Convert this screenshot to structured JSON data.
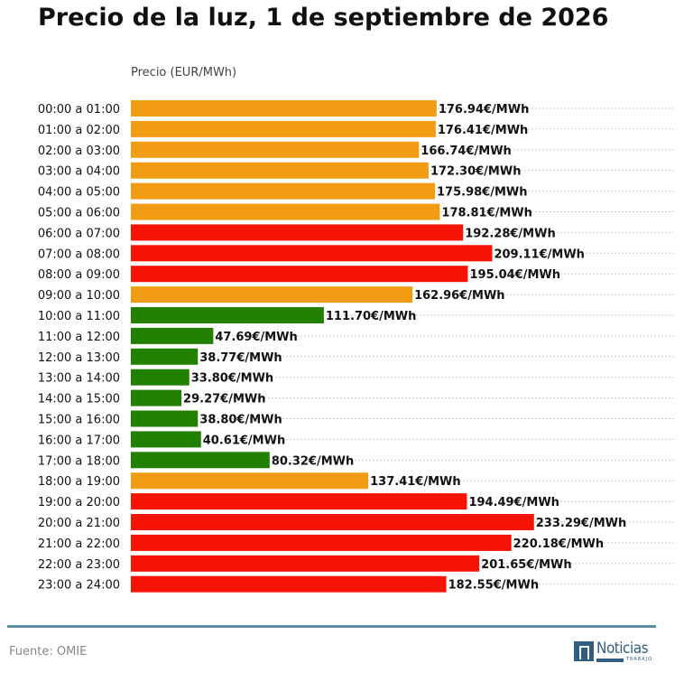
{
  "header": {
    "title": "Precio de la luz, 1 de septiembre de 2026"
  },
  "footer": {
    "source": "Fuente: OMIE",
    "logo_text": "Noticias",
    "logo_subtext": "TRABAJO"
  },
  "chart_data": {
    "type": "bar",
    "orientation": "horizontal",
    "title": "Precio de la luz, 1 de septiembre de 2026",
    "ylabel": "Precio (EUR/MWh)",
    "xlim": [
      0,
      253
    ],
    "grid": "dotted horizontal guides",
    "categories": [
      "00:00 a 01:00",
      "01:00 a 02:00",
      "02:00 a 03:00",
      "03:00 a 04:00",
      "04:00 a 05:00",
      "05:00 a 06:00",
      "06:00 a 07:00",
      "07:00 a 08:00",
      "08:00 a 09:00",
      "09:00 a 10:00",
      "10:00 a 11:00",
      "11:00 a 12:00",
      "12:00 a 13:00",
      "13:00 a 14:00",
      "14:00 a 15:00",
      "15:00 a 16:00",
      "16:00 a 17:00",
      "17:00 a 18:00",
      "18:00 a 19:00",
      "19:00 a 20:00",
      "20:00 a 21:00",
      "21:00 a 22:00",
      "22:00 a 23:00",
      "23:00 a 24:00"
    ],
    "values": [
      176.94,
      176.41,
      166.74,
      172.3,
      175.98,
      178.81,
      192.28,
      209.11,
      195.04,
      162.96,
      111.7,
      47.69,
      38.77,
      33.8,
      29.27,
      38.8,
      40.61,
      80.32,
      137.41,
      194.49,
      233.29,
      220.18,
      201.65,
      182.55
    ],
    "labels": [
      "176.94€/MWh",
      "176.41€/MWh",
      "166.74€/MWh",
      "172.30€/MWh",
      "175.98€/MWh",
      "178.81€/MWh",
      "192.28€/MWh",
      "209.11€/MWh",
      "195.04€/MWh",
      "162.96€/MWh",
      "111.70€/MWh",
      "47.69€/MWh",
      "38.77€/MWh",
      "33.80€/MWh",
      "29.27€/MWh",
      "38.80€/MWh",
      "40.61€/MWh",
      "80.32€/MWh",
      "137.41€/MWh",
      "194.49€/MWh",
      "233.29€/MWh",
      "220.18€/MWh",
      "201.65€/MWh",
      "182.55€/MWh"
    ],
    "bar_colors": [
      "#f29c14",
      "#f29c14",
      "#f29c14",
      "#f29c14",
      "#f29c14",
      "#f29c14",
      "#f51405",
      "#f51405",
      "#f51405",
      "#f29c14",
      "#228000",
      "#228000",
      "#228000",
      "#228000",
      "#228000",
      "#228000",
      "#228000",
      "#228000",
      "#f29c14",
      "#f51405",
      "#f51405",
      "#f51405",
      "#f51405",
      "#f51405"
    ],
    "colors": {
      "high": "#f51405",
      "medium": "#f29c14",
      "low": "#228000",
      "grid": "#bbbbbb",
      "accent": "#5a8fa8"
    }
  }
}
